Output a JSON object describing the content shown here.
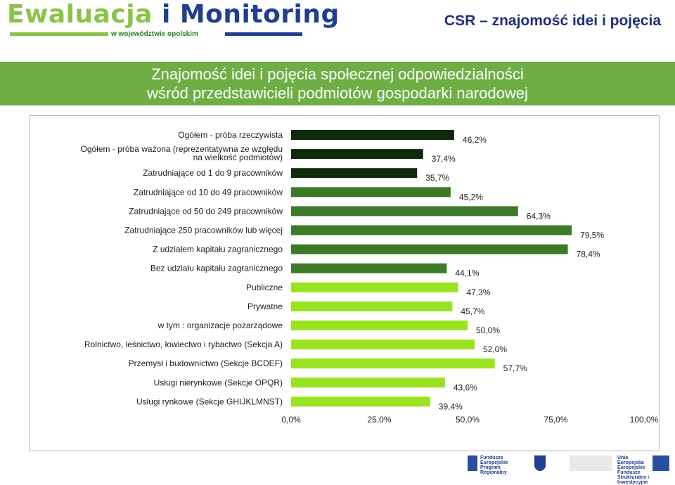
{
  "header": {
    "logo_line1_a": "Ewaluacja",
    "logo_line1_i": "i",
    "logo_line1_b": "Monitoring",
    "logo_subtitle": "w województwie opolskim",
    "corner_title": "CSR – znajomość idei i pojęcia"
  },
  "banner": {
    "line1": "Znajomość idei i pojęcia społecznej odpowiedzialności",
    "line2": "wśród przedstawicieli podmiotów gospodarki narodowej"
  },
  "footer": {
    "eu_fund_label": "Fundusze Europejskie",
    "eu_fund_sub": "Program Regionalny",
    "eu_union_label": "Unia Europejska",
    "eu_union_sub": "Europejskie Fundusze Strukturalne i Inwestycyjne"
  },
  "colors": {
    "bar_dark": "#0f2a0b",
    "bar_mid": "#3d7a27",
    "bar_light": "#99e321",
    "banner": "#6fae45"
  },
  "chart_data": {
    "type": "bar",
    "orientation": "horizontal",
    "categories": [
      "Ogółem - próba rzeczywista",
      "Ogółem - próba ważona (reprezentatywna ze względu na wielkość podmiotów)",
      "Zatrudniające od 1 do 9 pracowników",
      "Zatrudniające od 10 do 49 pracowników",
      "Zatrudniające od 50 do 249 pracowników",
      "Zatrudniające 250 pracowników lub więcej",
      "Z udziałem kapitału zagranicznego",
      "Bez udziału kapitału zagranicznego",
      "Publiczne",
      "Prywatne",
      "w tym : organizacje pozarządowe",
      "Rolnictwo, leśnictwo, łowiectwo i rybactwo (Sekcja A)",
      "Przemysł i budownictwo (Sekcje BCDEF)",
      "Usługi nierynkowe (Sekcje OPQR)",
      "Usługi rynkowe (Sekcje GHIJKLMNST)"
    ],
    "category_lines": [
      [
        "Ogółem - próba rzeczywista"
      ],
      [
        "Ogółem - próba ważona (reprezentatywna ze względu",
        "na wielkość podmiotów)"
      ],
      [
        "Zatrudniające od 1 do 9 pracowników"
      ],
      [
        "Zatrudniające od 10 do 49 pracowników"
      ],
      [
        "Zatrudniające od 50 do 249 pracowników"
      ],
      [
        "Zatrudniające 250 pracowników lub więcej"
      ],
      [
        "Z udziałem kapitału zagranicznego"
      ],
      [
        "Bez udziału kapitału zagranicznego"
      ],
      [
        "Publiczne"
      ],
      [
        "Prywatne"
      ],
      [
        "w tym : organizacje pozarządowe"
      ],
      [
        "Rolnictwo, leśnictwo, łowiectwo i rybactwo (Sekcja A)"
      ],
      [
        "Przemysł i budownictwo (Sekcje BCDEF)"
      ],
      [
        "Usługi nierynkowe (Sekcje OPQR)"
      ],
      [
        "Usługi rynkowe (Sekcje GHIJKLMNST)"
      ]
    ],
    "values": [
      46.2,
      37.4,
      35.7,
      45.2,
      64.3,
      79.5,
      78.4,
      44.1,
      47.3,
      45.7,
      50.0,
      52.0,
      57.7,
      43.6,
      39.4
    ],
    "value_labels": [
      "46,2%",
      "37,4%",
      "35,7%",
      "45,2%",
      "64,3%",
      "79,5%",
      "78,4%",
      "44,1%",
      "47,3%",
      "45,7%",
      "50,0%",
      "52,0%",
      "57,7%",
      "43,6%",
      "39,4%"
    ],
    "bar_colors": [
      "#0f2a0b",
      "#0f2a0b",
      "#0f2a0b",
      "#3d7a27",
      "#3d7a27",
      "#3d7a27",
      "#3d7a27",
      "#3d7a27",
      "#99e321",
      "#99e321",
      "#99e321",
      "#99e321",
      "#99e321",
      "#99e321",
      "#99e321"
    ],
    "xlim": [
      0,
      100
    ],
    "x_ticks": [
      0,
      25,
      50,
      75,
      100
    ],
    "x_tick_labels": [
      "0,0%",
      "25,0%",
      "50,0%",
      "75,0%",
      "100,0%"
    ],
    "grid": false,
    "legend": "none"
  }
}
